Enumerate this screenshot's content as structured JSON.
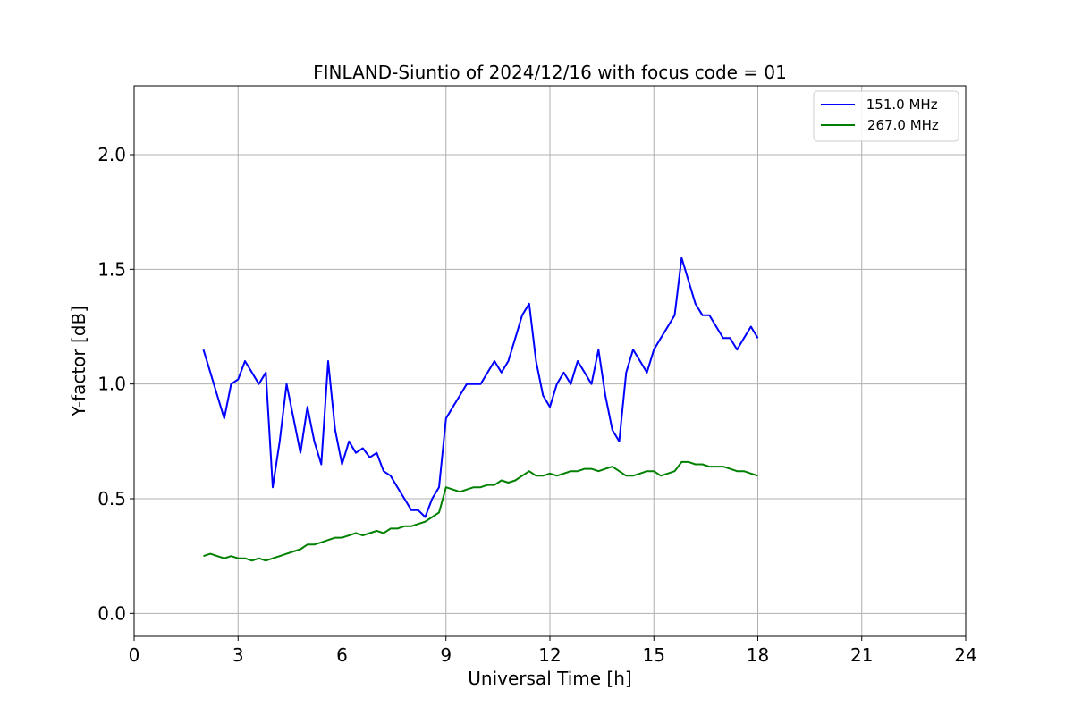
{
  "chart_data": {
    "type": "line",
    "title": "FINLAND-Siuntio of 2024/12/16 with focus code = 01",
    "xlabel": "Universal Time [h]",
    "ylabel": "Y-factor [dB]",
    "xlim": [
      0,
      24
    ],
    "ylim": [
      -0.1,
      2.3
    ],
    "xticks": [
      0,
      3,
      6,
      9,
      12,
      15,
      18,
      21,
      24
    ],
    "yticks": [
      0.0,
      0.5,
      1.0,
      1.5,
      2.0
    ],
    "xtick_labels": [
      "0",
      "3",
      "6",
      "9",
      "12",
      "15",
      "18",
      "21",
      "24"
    ],
    "ytick_labels": [
      "0.0",
      "0.5",
      "1.0",
      "1.5",
      "2.0"
    ],
    "grid": true,
    "legend_position": "top-right",
    "legend_labels": [
      " 151.0 MHz",
      "267.0 MHz"
    ],
    "series": [
      {
        "name": " 151.0 MHz",
        "color": "#0000ff",
        "x": [
          2.0,
          2.2,
          2.4,
          2.6,
          2.8,
          3.0,
          3.2,
          3.4,
          3.6,
          3.8,
          4.0,
          4.2,
          4.4,
          4.6,
          4.8,
          5.0,
          5.2,
          5.4,
          5.6,
          5.8,
          6.0,
          6.2,
          6.4,
          6.6,
          6.8,
          7.0,
          7.2,
          7.4,
          7.6,
          7.8,
          8.0,
          8.2,
          8.4,
          8.6,
          8.8,
          9.0,
          9.2,
          9.4,
          9.6,
          9.8,
          10.0,
          10.2,
          10.4,
          10.6,
          10.8,
          11.0,
          11.2,
          11.4,
          11.6,
          11.8,
          12.0,
          12.2,
          12.4,
          12.6,
          12.8,
          13.0,
          13.2,
          13.4,
          13.6,
          13.8,
          14.0,
          14.2,
          14.4,
          14.6,
          14.8,
          15.0,
          15.2,
          15.4,
          15.6,
          15.8,
          16.0,
          16.2,
          16.4,
          16.6,
          16.8,
          17.0,
          17.2,
          17.4,
          17.6,
          17.8,
          18.0
        ],
        "y": [
          1.15,
          1.05,
          0.95,
          0.85,
          1.0,
          1.02,
          1.1,
          1.05,
          1.0,
          1.05,
          0.55,
          0.75,
          1.0,
          0.85,
          0.7,
          0.9,
          0.75,
          0.65,
          1.1,
          0.8,
          0.65,
          0.75,
          0.7,
          0.72,
          0.68,
          0.7,
          0.62,
          0.6,
          0.55,
          0.5,
          0.45,
          0.45,
          0.42,
          0.5,
          0.55,
          0.85,
          0.9,
          0.95,
          1.0,
          1.0,
          1.0,
          1.05,
          1.1,
          1.05,
          1.1,
          1.2,
          1.3,
          1.35,
          1.1,
          0.95,
          0.9,
          1.0,
          1.05,
          1.0,
          1.1,
          1.05,
          1.0,
          1.15,
          0.95,
          0.8,
          0.75,
          1.05,
          1.15,
          1.1,
          1.05,
          1.15,
          1.2,
          1.25,
          1.3,
          1.55,
          1.45,
          1.35,
          1.3,
          1.3,
          1.25,
          1.2,
          1.2,
          1.15,
          1.2,
          1.25,
          1.2
        ]
      },
      {
        "name": "267.0 MHz",
        "color": "#008000",
        "x": [
          2.0,
          2.2,
          2.4,
          2.6,
          2.8,
          3.0,
          3.2,
          3.4,
          3.6,
          3.8,
          4.0,
          4.2,
          4.4,
          4.6,
          4.8,
          5.0,
          5.2,
          5.4,
          5.6,
          5.8,
          6.0,
          6.2,
          6.4,
          6.6,
          6.8,
          7.0,
          7.2,
          7.4,
          7.6,
          7.8,
          8.0,
          8.2,
          8.4,
          8.6,
          8.8,
          9.0,
          9.2,
          9.4,
          9.6,
          9.8,
          10.0,
          10.2,
          10.4,
          10.6,
          10.8,
          11.0,
          11.2,
          11.4,
          11.6,
          11.8,
          12.0,
          12.2,
          12.4,
          12.6,
          12.8,
          13.0,
          13.2,
          13.4,
          13.6,
          13.8,
          14.0,
          14.2,
          14.4,
          14.6,
          14.8,
          15.0,
          15.2,
          15.4,
          15.6,
          15.8,
          16.0,
          16.2,
          16.4,
          16.6,
          16.8,
          17.0,
          17.2,
          17.4,
          17.6,
          17.8,
          18.0
        ],
        "y": [
          0.25,
          0.26,
          0.25,
          0.24,
          0.25,
          0.24,
          0.24,
          0.23,
          0.24,
          0.23,
          0.24,
          0.25,
          0.26,
          0.27,
          0.28,
          0.3,
          0.3,
          0.31,
          0.32,
          0.33,
          0.33,
          0.34,
          0.35,
          0.34,
          0.35,
          0.36,
          0.35,
          0.37,
          0.37,
          0.38,
          0.38,
          0.39,
          0.4,
          0.42,
          0.44,
          0.55,
          0.54,
          0.53,
          0.54,
          0.55,
          0.55,
          0.56,
          0.56,
          0.58,
          0.57,
          0.58,
          0.6,
          0.62,
          0.6,
          0.6,
          0.61,
          0.6,
          0.61,
          0.62,
          0.62,
          0.63,
          0.63,
          0.62,
          0.63,
          0.64,
          0.62,
          0.6,
          0.6,
          0.61,
          0.62,
          0.62,
          0.6,
          0.61,
          0.62,
          0.66,
          0.66,
          0.65,
          0.65,
          0.64,
          0.64,
          0.64,
          0.63,
          0.62,
          0.62,
          0.61,
          0.6
        ]
      }
    ]
  }
}
